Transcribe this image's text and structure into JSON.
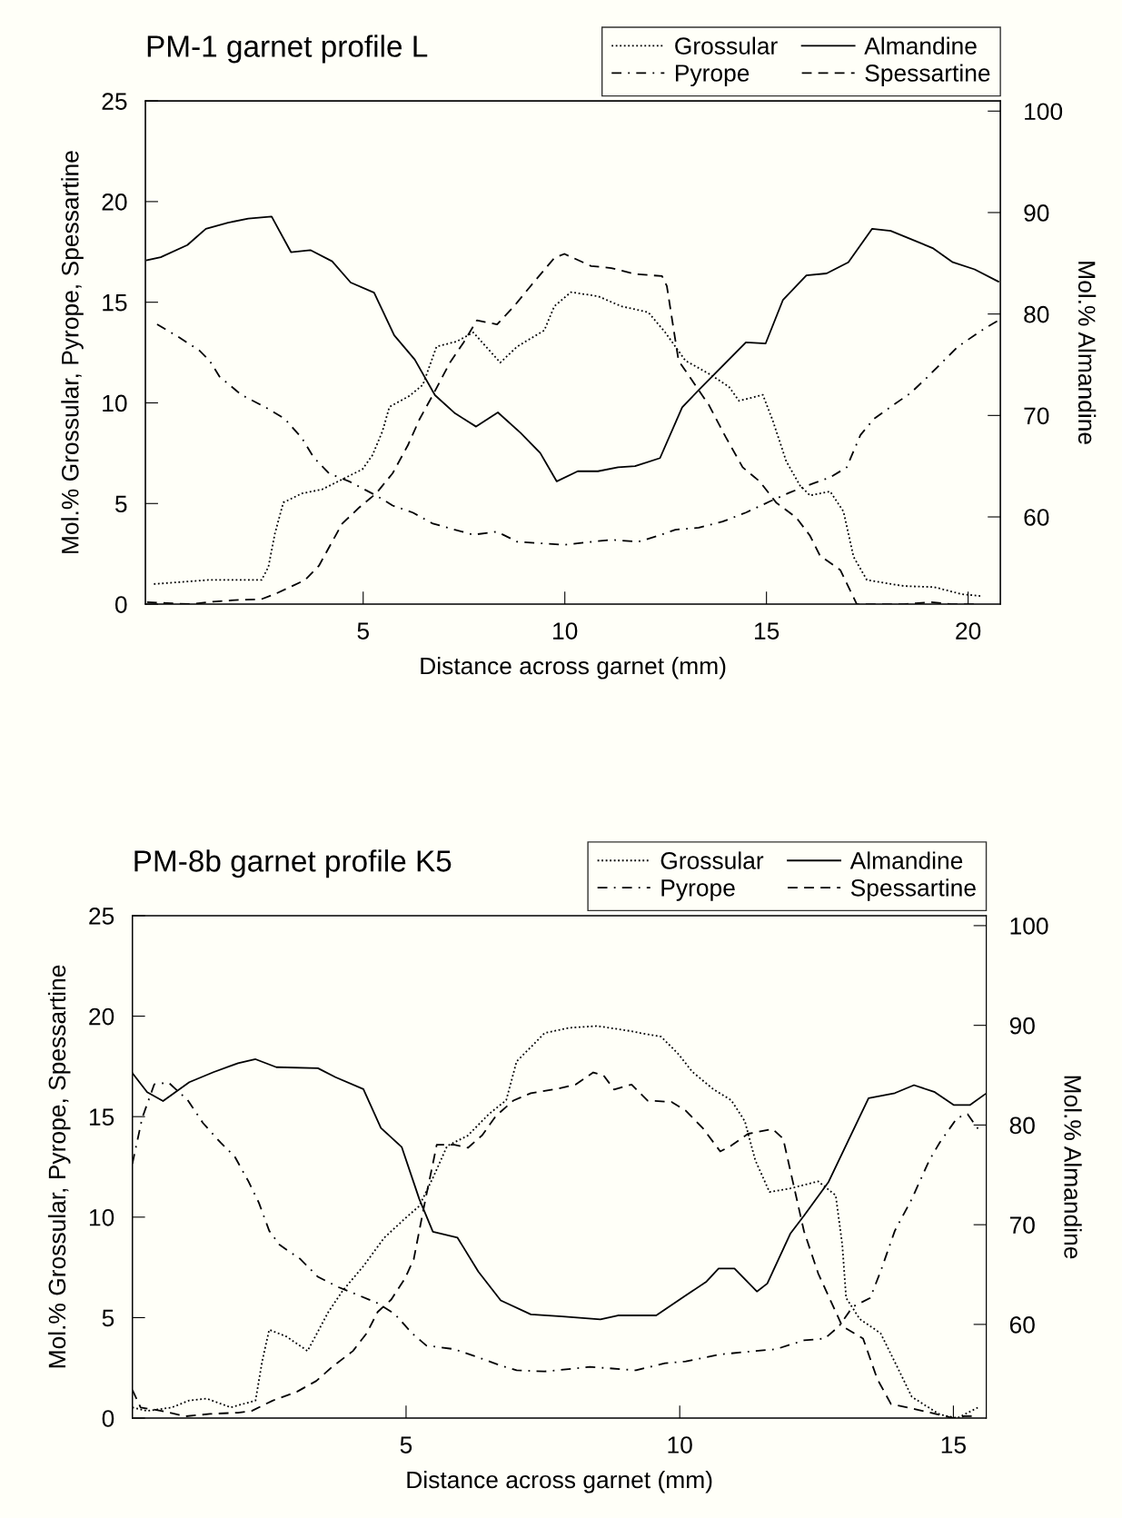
{
  "chart_data": [
    {
      "type": "line",
      "title": "PM-1 garnet profile L",
      "xlabel": "Distance across garnet (mm)",
      "ylabel": "Mol.% Grossular, Pyrope, Spessartine",
      "y2label": "Mol.% Almandine",
      "xlim": [
        -0.4,
        20.8
      ],
      "xticks": [
        5,
        10,
        15,
        20
      ],
      "ylim": [
        0,
        25
      ],
      "yticks": [
        0,
        5,
        10,
        15,
        20,
        25
      ],
      "y2lim": [
        51.4,
        101
      ],
      "y2ticks": [
        60,
        70,
        80,
        90,
        100
      ],
      "grid": false,
      "legend": "top right",
      "marker": "none",
      "series": [
        {
          "name": "Grossular",
          "color": "#000000",
          "line_style": "dotted",
          "x": [
            -0.19,
            0.48,
            1.15,
            1.81,
            2.48,
            2.65,
            2.81,
            3.02,
            3.48,
            3.98,
            4.48,
            4.98,
            5.23,
            5.48,
            5.65,
            6.15,
            6.48,
            6.82,
            7.32,
            7.73,
            8.4,
            8.82,
            9.49,
            9.74,
            10.15,
            10.82,
            11.4,
            12.07,
            12.49,
            12.99,
            13.57,
            14.07,
            14.32,
            14.91,
            15.16,
            15.49,
            15.83,
            16.08,
            16.58,
            16.91,
            17.16,
            17.49,
            18.41,
            19.16,
            19.83,
            20.33
          ],
          "values": [
            1.0,
            1.1,
            1.2,
            1.2,
            1.2,
            1.85,
            3.5,
            5.05,
            5.5,
            5.7,
            6.2,
            6.7,
            7.4,
            8.6,
            9.8,
            10.35,
            10.9,
            12.8,
            13.05,
            13.5,
            12.0,
            12.8,
            13.6,
            14.8,
            15.5,
            15.3,
            14.8,
            14.5,
            13.5,
            12.1,
            11.45,
            10.8,
            10.1,
            10.4,
            9.1,
            7.1,
            5.9,
            5.4,
            5.6,
            4.6,
            2.35,
            1.2,
            0.9,
            0.85,
            0.5,
            0.4
          ]
        },
        {
          "name": "Pyrope",
          "color": "#000000",
          "line_style": "dashdot",
          "x": [
            -0.11,
            0.4,
            0.94,
            1.19,
            1.44,
            1.98,
            2.65,
            3.06,
            3.48,
            3.77,
            4.15,
            4.65,
            5.32,
            5.73,
            6.23,
            6.73,
            7.73,
            8.32,
            8.82,
            9.99,
            11.15,
            11.82,
            12.32,
            12.74,
            13.32,
            13.91,
            14.49,
            15.08,
            15.58,
            16.16,
            16.58,
            16.99,
            17.33,
            17.66,
            18.08,
            18.58,
            19.0,
            19.75,
            20.41,
            20.75
          ],
          "values": [
            13.9,
            13.3,
            12.6,
            12.1,
            11.3,
            10.4,
            9.7,
            9.2,
            8.25,
            7.3,
            6.5,
            6.1,
            5.4,
            4.9,
            4.55,
            4.0,
            3.45,
            3.6,
            3.1,
            2.95,
            3.2,
            3.1,
            3.4,
            3.7,
            3.8,
            4.1,
            4.55,
            5.1,
            5.55,
            6.0,
            6.3,
            6.8,
            8.4,
            9.2,
            9.8,
            10.5,
            11.3,
            12.8,
            13.7,
            14.1
          ]
        },
        {
          "name": "Almandine",
          "color": "#000000",
          "line_style": "solid",
          "axis": "y2",
          "x": [
            -0.36,
            -0.02,
            0.64,
            1.1,
            1.65,
            2.15,
            2.73,
            3.21,
            3.69,
            4.23,
            4.69,
            5.27,
            5.77,
            6.28,
            6.78,
            7.28,
            7.8,
            8.34,
            8.9,
            9.39,
            9.8,
            10.32,
            10.82,
            11.32,
            11.74,
            12.36,
            12.91,
            13.32,
            14.49,
            14.98,
            15.41,
            15.99,
            16.49,
            17.03,
            17.62,
            18.08,
            19.12,
            19.62,
            20.16,
            20.75
          ],
          "values": [
            85.3,
            85.6,
            86.8,
            88.4,
            89.0,
            89.4,
            89.6,
            86.1,
            86.3,
            85.2,
            83.1,
            82.1,
            77.9,
            75.5,
            72.0,
            70.2,
            68.9,
            70.3,
            68.3,
            66.3,
            63.5,
            64.5,
            64.5,
            64.9,
            65.0,
            65.8,
            70.8,
            72.5,
            77.2,
            77.1,
            81.4,
            83.8,
            84.0,
            85.1,
            88.4,
            88.2,
            86.5,
            85.1,
            84.4,
            83.2
          ]
        },
        {
          "name": "Spessartine",
          "color": "#000000",
          "line_style": "dashed",
          "x": [
            -0.36,
            0.14,
            0.73,
            1.23,
            1.81,
            2.48,
            2.81,
            3.56,
            3.9,
            4.23,
            4.48,
            4.9,
            5.32,
            5.73,
            6.11,
            6.4,
            6.73,
            7.15,
            7.49,
            7.82,
            8.32,
            8.74,
            9.15,
            9.74,
            9.99,
            10.65,
            11.15,
            11.74,
            12.41,
            12.53,
            12.82,
            13.16,
            13.57,
            13.99,
            14.41,
            14.83,
            15.24,
            15.74,
            16.08,
            16.33,
            16.83,
            17.24,
            17.74,
            18.41,
            19.08,
            19.58,
            20.25
          ],
          "values": [
            0.1,
            0.05,
            0.0,
            0.12,
            0.2,
            0.25,
            0.5,
            1.2,
            1.9,
            3.1,
            4.0,
            4.8,
            5.5,
            6.5,
            7.9,
            9.2,
            10.4,
            12.0,
            13.0,
            14.1,
            13.9,
            14.8,
            15.8,
            17.2,
            17.4,
            16.8,
            16.7,
            16.4,
            16.3,
            15.8,
            12.1,
            11.1,
            9.9,
            8.3,
            6.8,
            6.1,
            5.05,
            4.3,
            3.4,
            2.4,
            1.7,
            0.0,
            0.0,
            0.0,
            0.1,
            0.0,
            0.0
          ]
        }
      ]
    },
    {
      "type": "line",
      "title": "PM-8b garnet profile K5",
      "xlabel": "Distance across garnet (mm)",
      "ylabel": "Mol.% Grossular, Pyrope, Spessartine",
      "y2label": "Mol.% Almandine",
      "xlim": [
        0,
        15.6
      ],
      "xticks": [
        5,
        10,
        15
      ],
      "ylim": [
        0,
        25
      ],
      "yticks": [
        0,
        5,
        10,
        15,
        20,
        25
      ],
      "y2lim": [
        50.6,
        101
      ],
      "y2ticks": [
        60,
        70,
        80,
        90,
        100
      ],
      "grid": false,
      "legend": "top right",
      "marker": "none",
      "series": [
        {
          "name": "Grossular",
          "color": "#000000",
          "line_style": "dotted",
          "x": [
            0.0,
            0.27,
            0.72,
            1.04,
            1.36,
            1.8,
            2.25,
            2.37,
            2.5,
            2.82,
            3.2,
            3.58,
            3.84,
            4.22,
            4.6,
            4.98,
            5.24,
            5.49,
            5.75,
            6.13,
            6.51,
            6.83,
            7.02,
            7.28,
            7.53,
            7.98,
            8.49,
            9.12,
            9.28,
            9.66,
            9.98,
            10.23,
            10.62,
            10.94,
            11.19,
            11.38,
            11.64,
            12.02,
            12.53,
            12.85,
            12.97,
            13.04,
            13.29,
            13.67,
            13.99,
            14.24,
            14.75,
            15.07,
            15.45
          ],
          "values": [
            0.53,
            0.36,
            0.53,
            0.88,
            0.97,
            0.53,
            0.88,
            2.81,
            4.4,
            4.05,
            3.34,
            5.28,
            6.33,
            7.56,
            8.97,
            9.93,
            10.55,
            11.95,
            13.54,
            14.06,
            15.12,
            15.82,
            17.75,
            18.46,
            19.16,
            19.42,
            19.51,
            19.25,
            19.16,
            18.98,
            18.1,
            17.23,
            16.35,
            15.82,
            14.77,
            12.83,
            11.25,
            11.43,
            11.78,
            11.08,
            8.62,
            5.98,
            4.93,
            4.22,
            2.46,
            1.06,
            0.18,
            0.0,
            0.53
          ]
        },
        {
          "name": "Pyrope",
          "color": "#000000",
          "line_style": "dashdot",
          "x": [
            0.0,
            0.18,
            0.4,
            0.66,
            1.01,
            1.29,
            1.61,
            1.87,
            2.12,
            2.31,
            2.5,
            2.69,
            3.07,
            3.39,
            3.77,
            4.09,
            4.48,
            4.79,
            5.11,
            5.37,
            5.88,
            6.26,
            6.7,
            7.02,
            7.53,
            8.04,
            8.36,
            9.2,
            9.73,
            10.11,
            10.74,
            11.38,
            11.76,
            12.27,
            12.65,
            12.91,
            13.16,
            13.48,
            13.67,
            13.93,
            14.24,
            14.56,
            14.75,
            15.07,
            15.26,
            15.49
          ],
          "values": [
            12.66,
            14.94,
            16.61,
            16.7,
            15.82,
            14.68,
            13.71,
            13.01,
            11.78,
            10.72,
            9.32,
            8.62,
            7.91,
            7.03,
            6.51,
            6.16,
            5.72,
            5.19,
            4.22,
            3.61,
            3.43,
            3.08,
            2.64,
            2.38,
            2.32,
            2.46,
            2.55,
            2.38,
            2.73,
            2.82,
            3.17,
            3.34,
            3.43,
            3.87,
            3.96,
            4.57,
            5.54,
            5.98,
            7.3,
            9.32,
            10.9,
            12.83,
            13.71,
            14.94,
            15.12,
            14.24
          ]
        },
        {
          "name": "Almandine",
          "color": "#000000",
          "line_style": "solid",
          "axis": "y2",
          "x": [
            0.0,
            0.27,
            0.56,
            1.04,
            1.48,
            1.93,
            2.25,
            2.63,
            3.39,
            3.71,
            4.22,
            4.54,
            4.92,
            5.24,
            5.49,
            5.94,
            6.32,
            6.73,
            7.28,
            7.85,
            8.55,
            8.87,
            9.2,
            9.57,
            10.11,
            10.49,
            10.71,
            11.0,
            11.41,
            11.6,
            12.02,
            12.27,
            12.72,
            13.45,
            13.93,
            14.28,
            14.66,
            15.01,
            15.3,
            15.58
          ],
          "values": [
            85.2,
            83.3,
            82.4,
            84.3,
            85.3,
            86.2,
            86.6,
            85.8,
            85.7,
            84.8,
            83.6,
            79.7,
            77.8,
            72.6,
            69.3,
            68.7,
            65.3,
            62.4,
            61.0,
            60.8,
            60.5,
            60.9,
            60.9,
            60.9,
            62.9,
            64.3,
            65.6,
            65.6,
            63.3,
            64.1,
            69.1,
            70.9,
            74.3,
            82.7,
            83.2,
            84.0,
            83.3,
            82.0,
            82.0,
            83.1
          ]
        },
        {
          "name": "Spessartine",
          "color": "#000000",
          "line_style": "dashed",
          "x": [
            0.0,
            0.15,
            0.53,
            0.97,
            1.42,
            1.93,
            2.18,
            2.57,
            3.01,
            3.36,
            3.65,
            4.03,
            4.28,
            4.48,
            4.73,
            4.98,
            5.14,
            5.24,
            5.37,
            5.49,
            5.56,
            5.88,
            6.13,
            6.39,
            6.64,
            6.96,
            7.28,
            7.79,
            8.1,
            8.42,
            8.61,
            8.8,
            9.12,
            9.41,
            9.85,
            10.11,
            10.43,
            10.74,
            10.93,
            11.25,
            11.7,
            11.89,
            12.08,
            12.27,
            12.53,
            12.78,
            12.97,
            13.35,
            13.61,
            13.86,
            14.31,
            14.69,
            15.01,
            15.2,
            15.39
          ],
          "values": [
            1.4,
            0.53,
            0.36,
            0.09,
            0.21,
            0.27,
            0.36,
            0.88,
            1.32,
            1.85,
            2.55,
            3.34,
            4.22,
            5.28,
            5.9,
            6.95,
            7.9,
            9.3,
            11.1,
            12.66,
            13.6,
            13.6,
            13.45,
            14.07,
            15.03,
            15.8,
            16.17,
            16.4,
            16.6,
            17.2,
            17.05,
            16.35,
            16.6,
            15.8,
            15.73,
            15.3,
            14.4,
            13.27,
            13.54,
            14.15,
            14.38,
            13.9,
            11.6,
            9.3,
            7.2,
            5.7,
            4.57,
            3.96,
            1.94,
            0.7,
            0.44,
            0.2,
            0.0,
            0.1,
            0.1
          ]
        }
      ]
    }
  ]
}
